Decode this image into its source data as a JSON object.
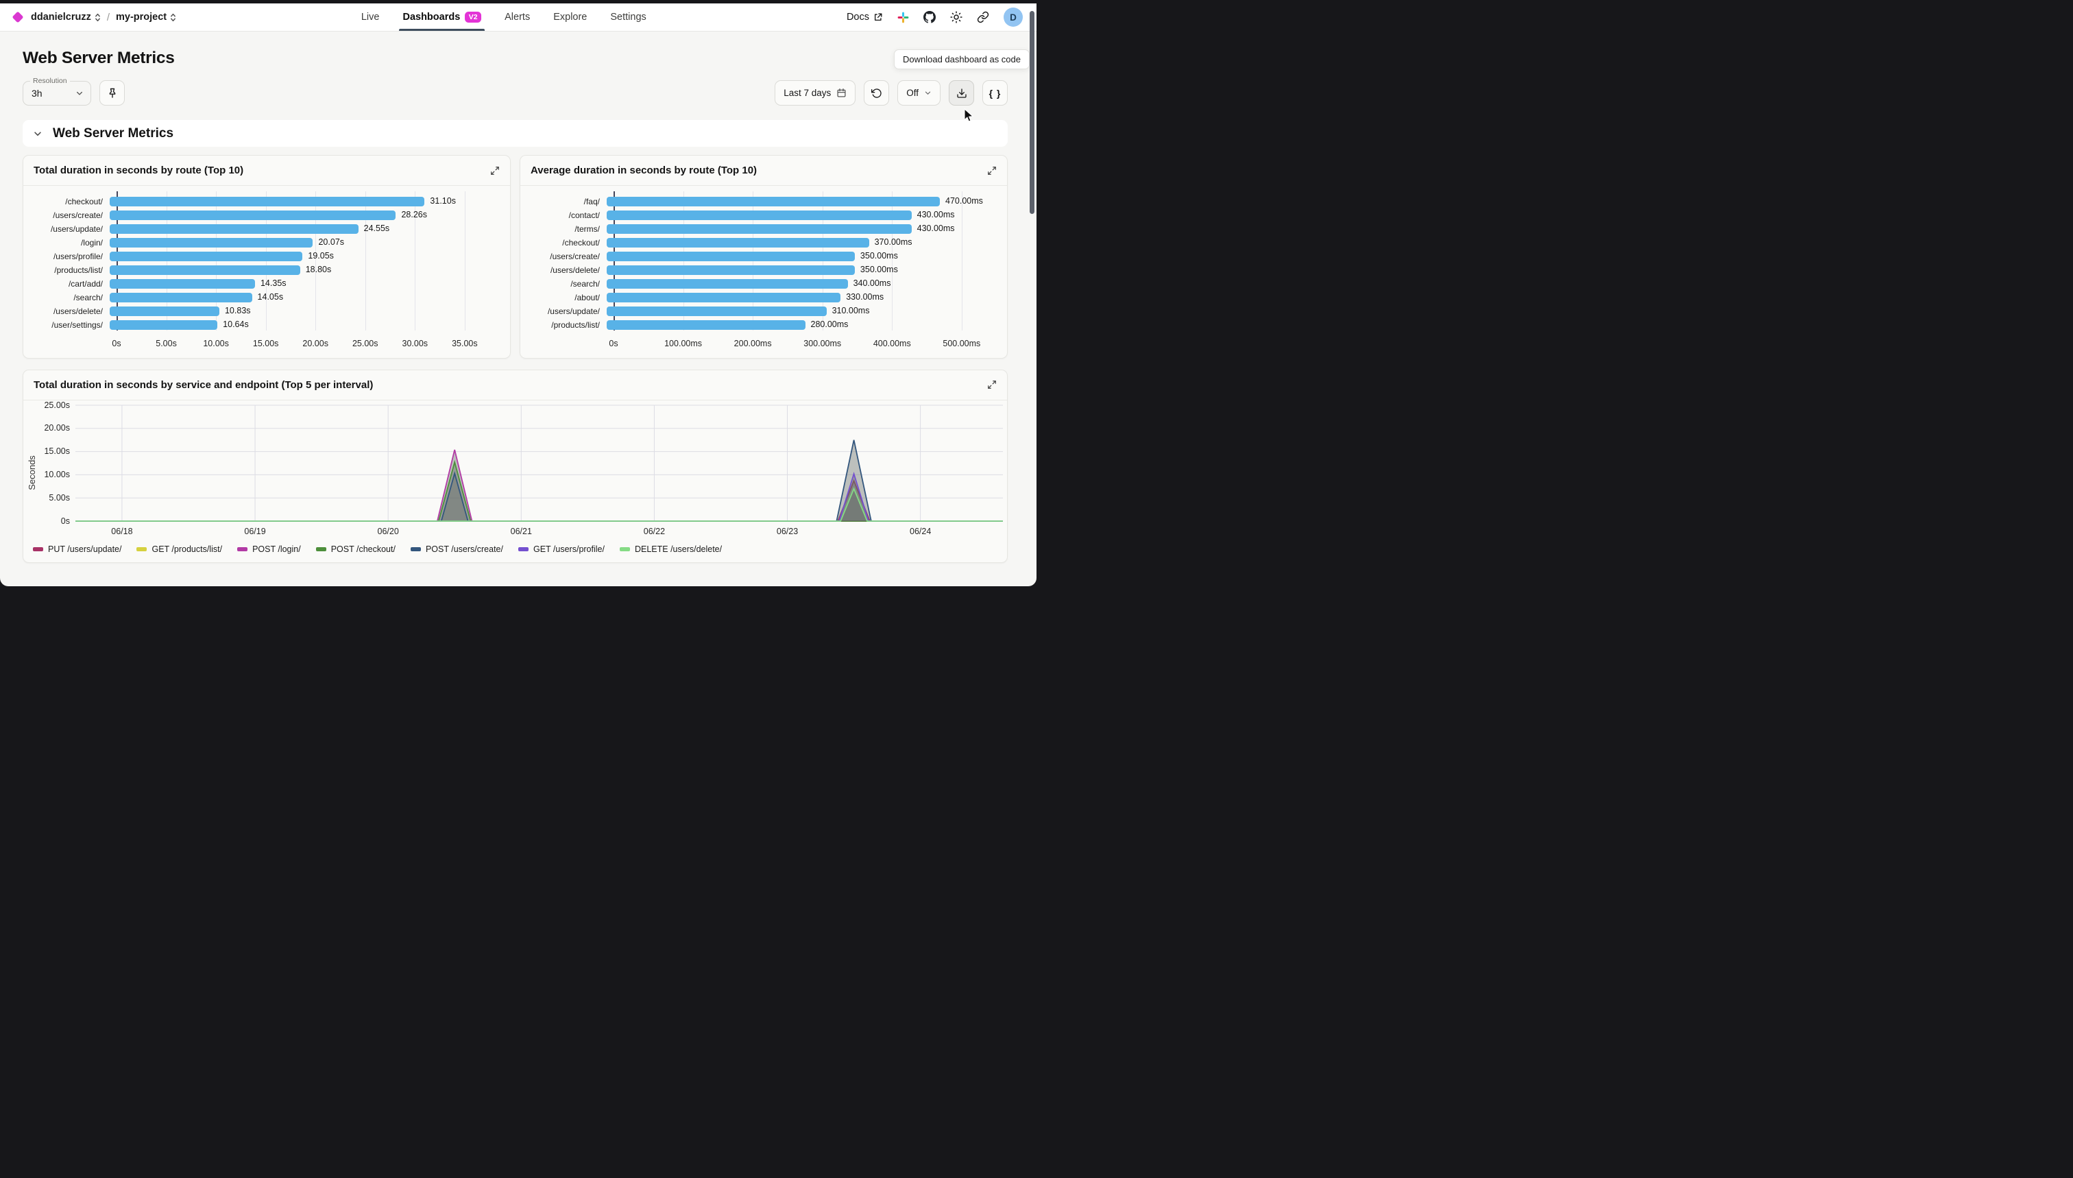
{
  "nav": {
    "breadcrumb": {
      "org": "ddanielcruzz",
      "separator": "/",
      "project": "my-project"
    },
    "tabs": [
      {
        "label": "Live"
      },
      {
        "label": "Dashboards",
        "badge": "V2"
      },
      {
        "label": "Alerts"
      },
      {
        "label": "Explore"
      },
      {
        "label": "Settings"
      }
    ],
    "docs_label": "Docs",
    "avatar_initial": "D"
  },
  "header": {
    "page_title": "Web Server Metrics"
  },
  "toolbar": {
    "resolution_label": "Resolution",
    "resolution_value": "3h",
    "time_range_label": "Last 7 days",
    "auto_refresh_label": "Off",
    "code_button_label": "{ }",
    "tooltip": "Download dashboard as code"
  },
  "section": {
    "title": "Web Server Metrics"
  },
  "colors": {
    "accent": "#e333d6",
    "bar_blue": "#58b2e7"
  },
  "chart_data": [
    {
      "type": "bar",
      "orientation": "horizontal",
      "title": "Total duration in seconds by route (Top 10)",
      "categories": [
        "/checkout/",
        "/users/create/",
        "/users/update/",
        "/login/",
        "/users/profile/",
        "/products/list/",
        "/cart/add/",
        "/search/",
        "/users/delete/",
        "/user/settings/"
      ],
      "values": [
        31.1,
        28.26,
        24.55,
        20.07,
        19.05,
        18.8,
        14.35,
        14.05,
        10.83,
        10.64
      ],
      "value_labels": [
        "31.10s",
        "28.26s",
        "24.55s",
        "20.07s",
        "19.05s",
        "18.80s",
        "14.35s",
        "14.05s",
        "10.83s",
        "10.64s"
      ],
      "x_max": 35,
      "tick_values": [
        0,
        5,
        10,
        15,
        20,
        25,
        30,
        35
      ],
      "tick_labels": [
        "0s",
        "5.00s",
        "10.00s",
        "15.00s",
        "20.00s",
        "25.00s",
        "30.00s",
        "35.00s"
      ],
      "bar_color": "#58b2e7"
    },
    {
      "type": "bar",
      "orientation": "horizontal",
      "title": "Average duration in seconds by route (Top 10)",
      "categories": [
        "/faq/",
        "/contact/",
        "/terms/",
        "/checkout/",
        "/users/create/",
        "/users/delete/",
        "/search/",
        "/about/",
        "/users/update/",
        "/products/list/"
      ],
      "values": [
        470,
        430,
        430,
        370,
        350,
        350,
        340,
        330,
        310,
        280
      ],
      "value_labels": [
        "470.00ms",
        "430.00ms",
        "430.00ms",
        "370.00ms",
        "350.00ms",
        "350.00ms",
        "340.00ms",
        "330.00ms",
        "310.00ms",
        "280.00ms"
      ],
      "x_max": 500,
      "tick_values": [
        0,
        100,
        200,
        300,
        400,
        500
      ],
      "tick_labels": [
        "0s",
        "100.00ms",
        "200.00ms",
        "300.00ms",
        "400.00ms",
        "500.00ms"
      ],
      "bar_color": "#58b2e7"
    },
    {
      "type": "area",
      "title": "Total duration in seconds by service and endpoint (Top 5 per interval)",
      "ylabel": "Seconds",
      "y_max": 25,
      "y_tick_values": [
        0,
        5,
        10,
        15,
        20,
        25
      ],
      "y_tick_labels": [
        "0s",
        "5.00s",
        "10.00s",
        "15.00s",
        "20.00s",
        "25.00s"
      ],
      "x_tick_labels": [
        "06/18",
        "06/19",
        "06/20",
        "06/21",
        "06/22",
        "06/23",
        "06/24"
      ],
      "x_domain": [
        -0.35,
        6.62
      ],
      "fill": "rgba(98,104,100,0.40)",
      "series": [
        {
          "name": "PUT /users/update/",
          "color": "#a83266",
          "peaks": [
            {
              "center": 5.5,
              "half_width": 0.12,
              "value": 8.7
            }
          ]
        },
        {
          "name": "GET /products/list/",
          "color": "#d6d13f",
          "peaks": []
        },
        {
          "name": "POST /login/",
          "color": "#b23aa5",
          "peaks": [
            {
              "center": 2.5,
              "half_width": 0.13,
              "value": 15.4
            }
          ]
        },
        {
          "name": "POST /checkout/",
          "color": "#4d8f3b",
          "peaks": [
            {
              "center": 2.5,
              "half_width": 0.12,
              "value": 12.7
            }
          ]
        },
        {
          "name": "POST /users/create/",
          "color": "#33567d",
          "peaks": [
            {
              "center": 2.5,
              "half_width": 0.1,
              "value": 10.3
            },
            {
              "center": 5.5,
              "half_width": 0.13,
              "value": 17.5
            }
          ]
        },
        {
          "name": "GET /users/profile/",
          "color": "#7450cf",
          "peaks": [
            {
              "center": 5.5,
              "half_width": 0.11,
              "value": 10.2
            }
          ]
        },
        {
          "name": "DELETE /users/delete/",
          "color": "#85db85",
          "peaks": [
            {
              "center": 5.5,
              "half_width": 0.1,
              "value": 7.0
            }
          ]
        }
      ]
    }
  ]
}
